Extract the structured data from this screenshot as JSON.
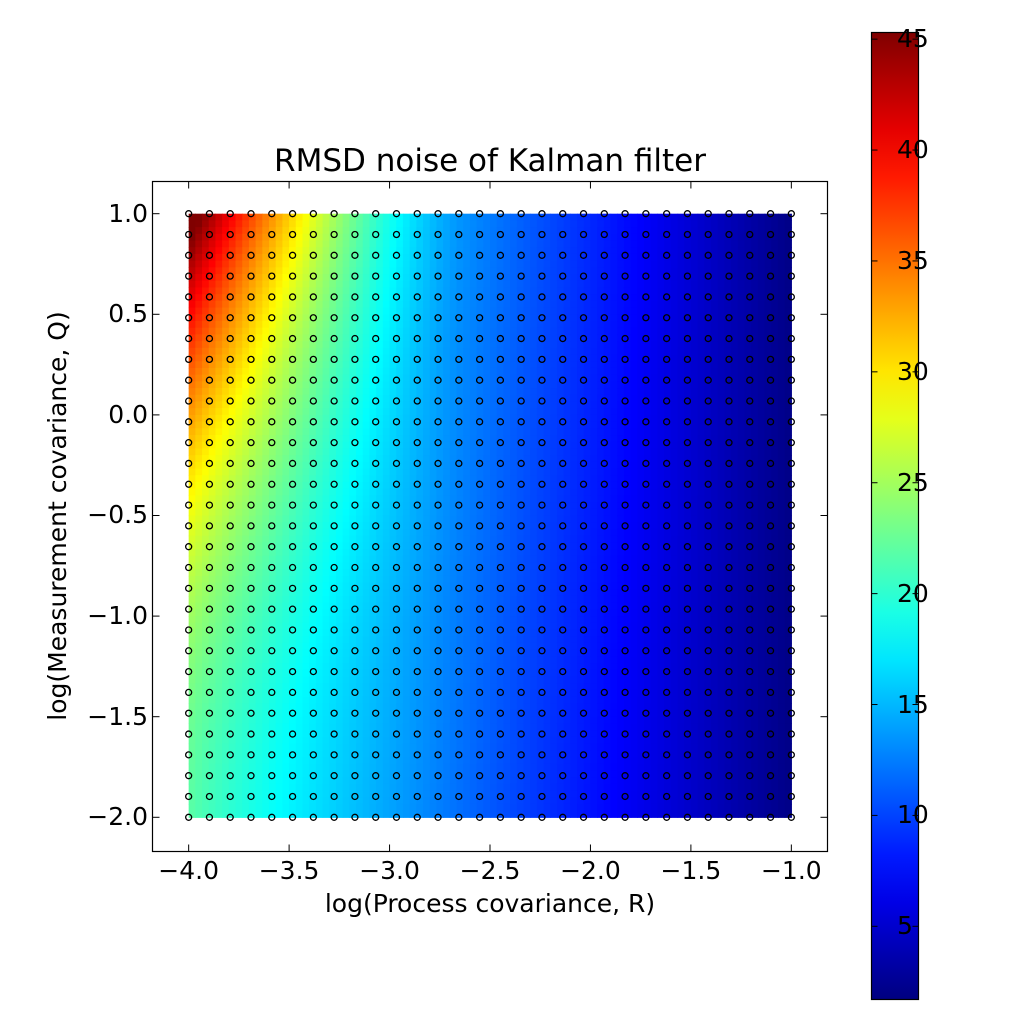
{
  "chart_data": {
    "type": "heatmap",
    "title": "RMSD noise of Kalman filter",
    "xlabel": "log(Process covariance, R)",
    "ylabel": "log(Measurement covariance, Q)",
    "xlim": [
      -4.18,
      -0.82
    ],
    "ylim": [
      -2.17,
      1.16
    ],
    "xticks": [
      -4.0,
      -3.5,
      -3.0,
      -2.5,
      -2.0,
      -1.5,
      -1.0
    ],
    "xtick_labels": [
      "−4.0",
      "−3.5",
      "−3.0",
      "−2.5",
      "−2.0",
      "−1.5",
      "−1.0"
    ],
    "yticks": [
      1.0,
      0.5,
      0.0,
      -0.5,
      -1.0,
      -1.5,
      -2.0
    ],
    "ytick_labels": [
      "1.0",
      "0.5",
      "0.0",
      "−0.5",
      "−1.0",
      "−1.5",
      "−2.0"
    ],
    "grid": false,
    "colormap": "jet",
    "colorbar": {
      "vmin": 1.7,
      "vmax": 45.3,
      "ticks": [
        5,
        10,
        15,
        20,
        25,
        30,
        35,
        40,
        45
      ],
      "tick_labels": [
        "5",
        "10",
        "15",
        "20",
        "25",
        "30",
        "35",
        "40",
        "45"
      ]
    },
    "grid_points": {
      "x_start": -4.0,
      "x_end": -1.0,
      "nx": 30,
      "y_start": -2.0,
      "y_end": 1.0,
      "ny": 30,
      "marker": "open-circle"
    },
    "sampled_values": {
      "description": "approximate RMSD at selected (x=log R, y=log Q) points read from colormap",
      "points": [
        {
          "x": -4.0,
          "y": 1.0,
          "value": 45
        },
        {
          "x": -3.8,
          "y": 1.0,
          "value": 38
        },
        {
          "x": -3.6,
          "y": 1.0,
          "value": 31
        },
        {
          "x": -3.4,
          "y": 1.0,
          "value": 26
        },
        {
          "x": -3.0,
          "y": 1.0,
          "value": 19
        },
        {
          "x": -2.5,
          "y": 1.0,
          "value": 11
        },
        {
          "x": -2.0,
          "y": 1.0,
          "value": 6
        },
        {
          "x": -1.5,
          "y": 1.0,
          "value": 3.5
        },
        {
          "x": -1.0,
          "y": 1.0,
          "value": 2
        },
        {
          "x": -4.0,
          "y": 0.5,
          "value": 32
        },
        {
          "x": -4.0,
          "y": 0.0,
          "value": 27
        },
        {
          "x": -4.0,
          "y": -1.0,
          "value": 23
        },
        {
          "x": -4.0,
          "y": -2.0,
          "value": 22
        },
        {
          "x": -3.5,
          "y": -2.0,
          "value": 20
        },
        {
          "x": -3.0,
          "y": -2.0,
          "value": 16
        },
        {
          "x": -2.5,
          "y": -2.0,
          "value": 10
        },
        {
          "x": -2.0,
          "y": -2.0,
          "value": 6
        },
        {
          "x": -1.5,
          "y": -2.0,
          "value": 3.5
        },
        {
          "x": -1.0,
          "y": -2.0,
          "value": 2
        }
      ]
    }
  }
}
